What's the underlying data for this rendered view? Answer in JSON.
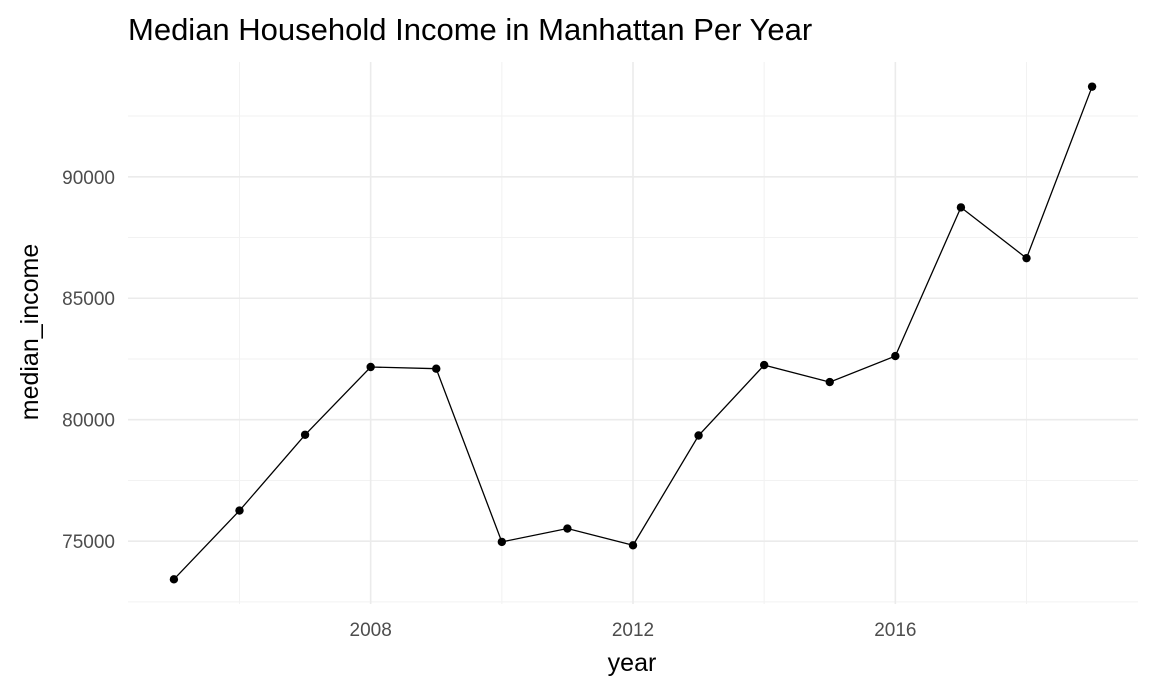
{
  "chart_data": {
    "type": "line",
    "title": "Median Household Income in Manhattan Per Year",
    "xlabel": "year",
    "ylabel": "median_income",
    "x": [
      2005,
      2006,
      2007,
      2008,
      2009,
      2010,
      2011,
      2012,
      2013,
      2014,
      2015,
      2016,
      2017,
      2018,
      2019
    ],
    "series": [
      {
        "values": [
          73430,
          76260,
          79380,
          82170,
          82100,
          74970,
          75520,
          74830,
          79350,
          82250,
          81550,
          82620,
          88740,
          86650,
          93710
        ]
      }
    ],
    "x_ticks": [
      2008,
      2012,
      2016
    ],
    "x_tick_labels": [
      "2008",
      "2012",
      "2016"
    ],
    "y_ticks": [
      75000,
      80000,
      85000,
      90000
    ],
    "y_tick_labels": [
      "75000",
      "80000",
      "85000",
      "90000"
    ],
    "xlim": [
      2004.3,
      2019.7
    ],
    "ylim": [
      72414,
      94725
    ],
    "grid": true,
    "legend": "none",
    "colors": {
      "line": "#000000",
      "point": "#000000",
      "grid": "#ebebeb",
      "background": "#ffffff"
    }
  }
}
